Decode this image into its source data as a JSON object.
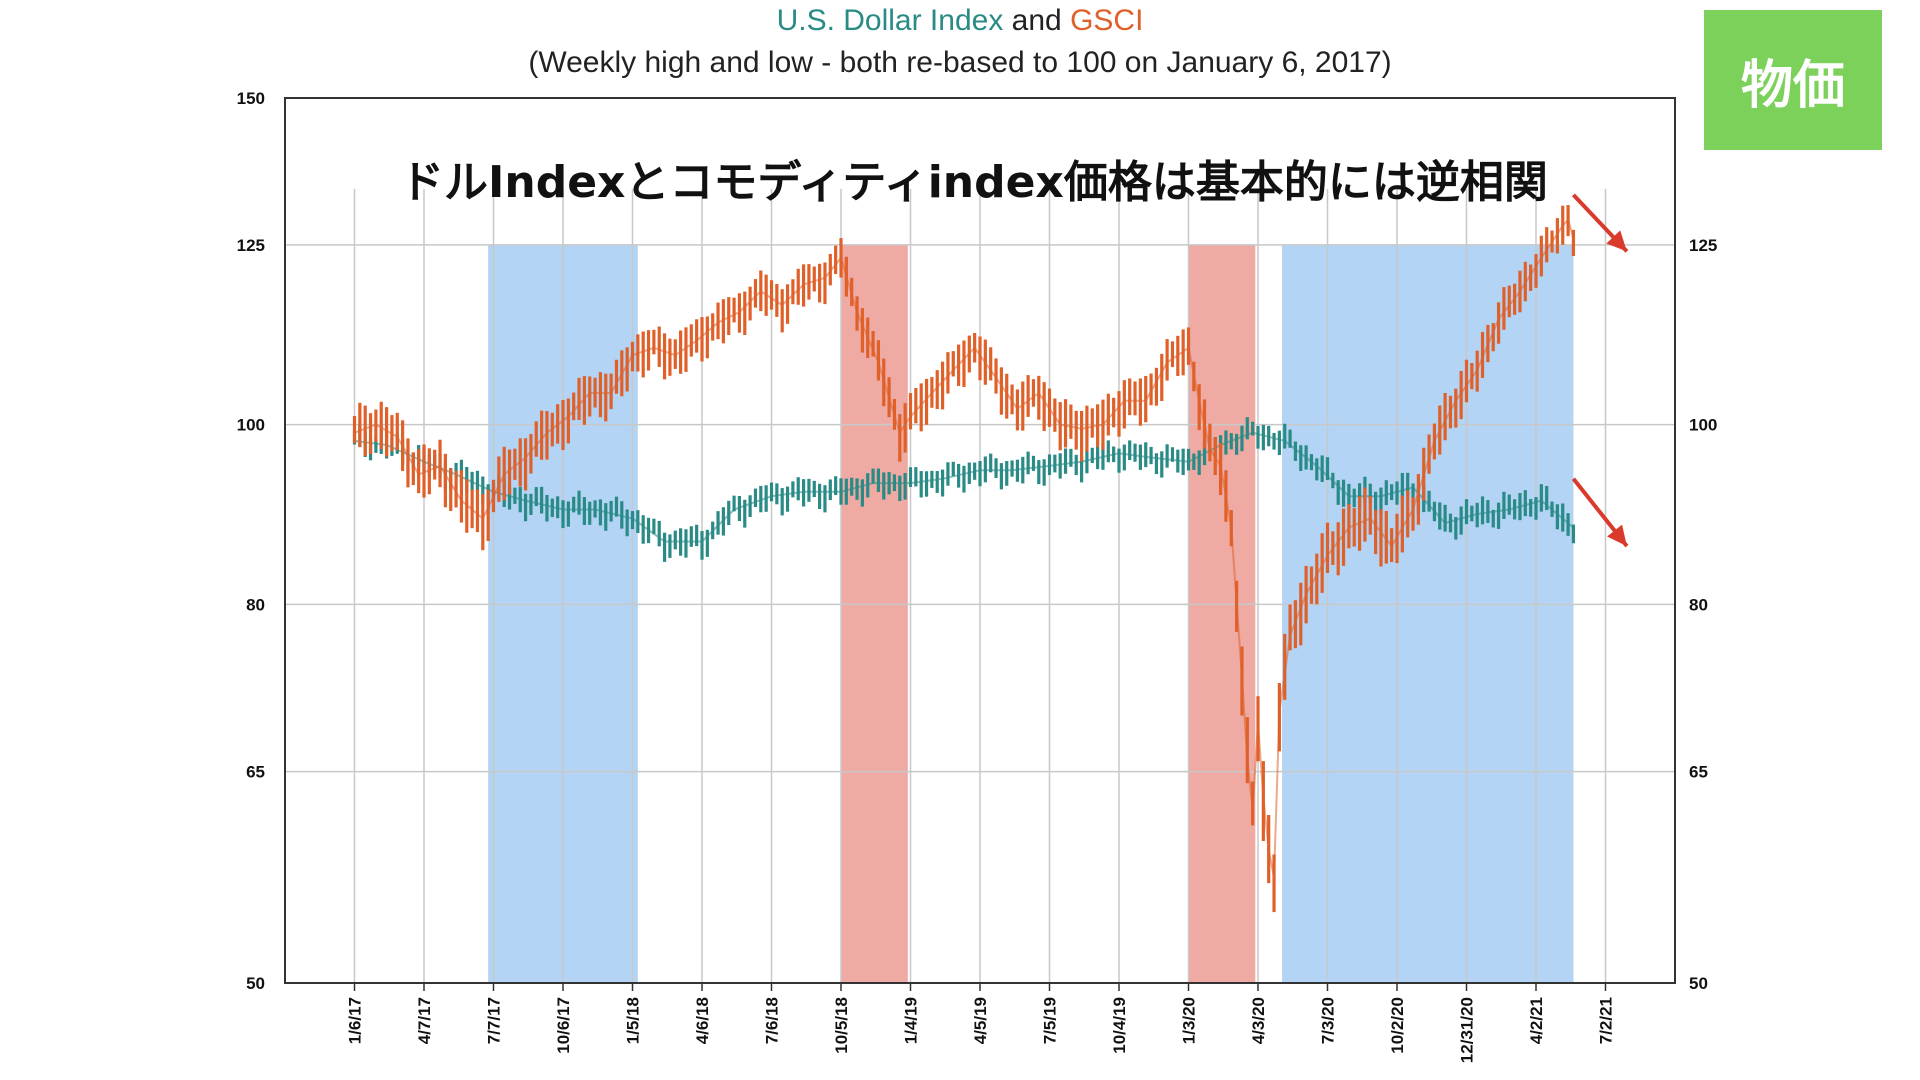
{
  "title": {
    "part1": "U.S. Dollar Index",
    "part2": " and ",
    "part3": "GSCI",
    "subtitle": "(Weekly high and low - both re-based to 100 on January 6, 2017)"
  },
  "annotation": "ドルIndexとコモディティindex価格は基本的には逆相関",
  "badge": "物価",
  "colors": {
    "usd": "#2a8a86",
    "gsci": "#e0602a",
    "blue_band": "#b3d4f5",
    "red_band": "#efaaa4",
    "arrow": "#d93a2b",
    "grid": "#c8c8c8"
  },
  "chart_data": {
    "type": "line",
    "ylim": [
      50,
      150
    ],
    "yticks": [
      "150",
      "125",
      "100",
      "80",
      "65",
      "50"
    ],
    "ytick_values": [
      150,
      125,
      100,
      80,
      65,
      50
    ],
    "y_right_ticks": [
      "125",
      "100",
      "80",
      "65",
      "50"
    ],
    "y_right_values": [
      125,
      100,
      80,
      65,
      50
    ],
    "x_ticks": [
      "1/6/17",
      "4/7/17",
      "7/7/17",
      "10/6/17",
      "1/5/18",
      "4/6/18",
      "7/6/18",
      "10/5/18",
      "1/4/19",
      "4/5/19",
      "7/5/19",
      "10/4/19",
      "1/3/20",
      "4/3/20",
      "7/3/20",
      "10/2/20",
      "12/31/20",
      "4/2/21",
      "7/2/21"
    ],
    "x_tick_values": [
      0,
      13,
      26,
      39,
      52,
      65,
      78,
      91,
      104,
      117,
      130,
      143,
      156,
      169,
      182,
      195,
      208,
      221,
      234
    ],
    "x_range": [
      -13,
      247
    ],
    "shaded_regions": [
      {
        "start": 25,
        "end": 53,
        "color": "blue"
      },
      {
        "start": 91,
        "end": 103.5,
        "color": "red"
      },
      {
        "start": 156,
        "end": 168.5,
        "color": "red"
      },
      {
        "start": 173.5,
        "end": 228,
        "color": "blue"
      }
    ],
    "series": [
      {
        "name": "U.S. Dollar Index",
        "x": [
          0,
          6,
          13,
          19,
          26,
          32,
          39,
          45,
          52,
          58,
          65,
          71,
          78,
          84,
          91,
          97,
          104,
          110,
          117,
          123,
          130,
          136,
          143,
          149,
          156,
          162,
          168,
          174,
          180,
          186,
          192,
          198,
          204,
          210,
          216,
          222,
          228
        ],
        "y": [
          98,
          97.5,
          95.5,
          94,
          92,
          91,
          90,
          90,
          89,
          86.5,
          86.5,
          90,
          91.5,
          92,
          92,
          93,
          93,
          93.5,
          94.5,
          94.5,
          95,
          95.5,
          96.5,
          96,
          95.5,
          97.5,
          99,
          98,
          95,
          91.5,
          91.5,
          92.5,
          88.5,
          89.5,
          90,
          91,
          88
        ]
      },
      {
        "name": "GSCI",
        "x": [
          0,
          4,
          8,
          12,
          16,
          20,
          24,
          28,
          32,
          36,
          40,
          44,
          48,
          52,
          56,
          60,
          64,
          68,
          72,
          76,
          80,
          84,
          88,
          91,
          94,
          98,
          102,
          104,
          108,
          112,
          116,
          120,
          124,
          128,
          132,
          136,
          140,
          144,
          148,
          152,
          156,
          158,
          160,
          162,
          164,
          166,
          167,
          168,
          169,
          170,
          171,
          172,
          173,
          175,
          178,
          182,
          186,
          190,
          194,
          198,
          202,
          206,
          210,
          214,
          218,
          222,
          226,
          227,
          228
        ],
        "y": [
          99,
          100,
          98.5,
          94,
          95,
          91,
          89,
          94,
          96,
          99,
          101,
          104,
          104,
          109,
          110,
          109,
          111,
          113.5,
          115,
          118,
          116,
          119,
          120,
          123,
          115,
          108,
          99,
          101,
          104,
          107,
          110,
          106,
          102,
          104,
          100,
          99.5,
          100,
          103,
          103,
          108,
          110,
          103,
          97,
          95,
          88,
          73,
          66,
          62,
          69,
          63,
          59,
          57,
          70,
          77,
          81,
          85,
          88,
          89,
          86,
          90,
          98,
          103,
          107,
          114,
          118,
          123,
          128,
          129,
          126
        ]
      }
    ],
    "bar_half_range": {
      "U.S. Dollar Index": 1.2,
      "GSCI": 2.4
    }
  }
}
